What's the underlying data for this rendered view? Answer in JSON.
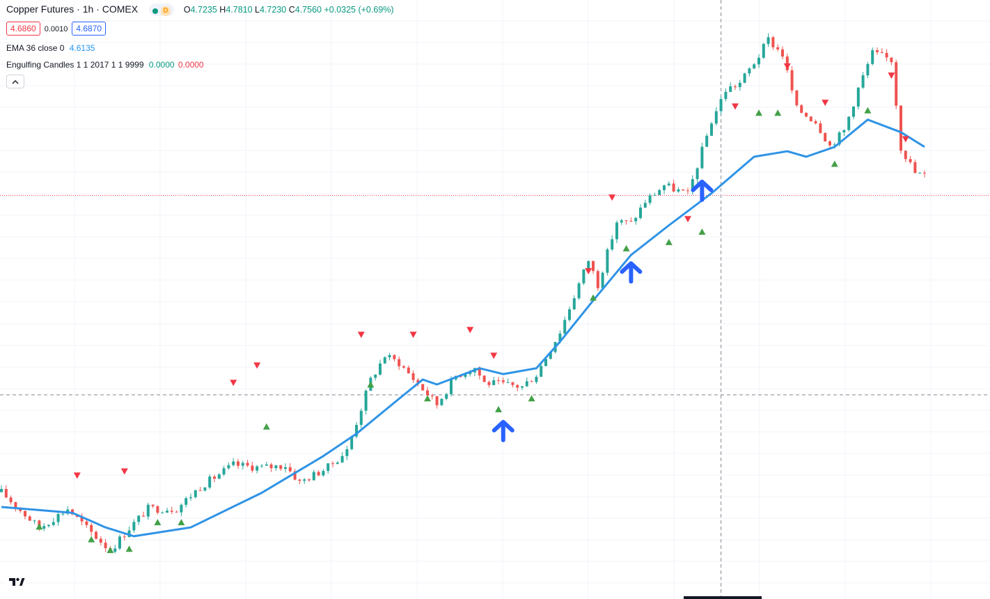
{
  "header": {
    "symbol": "Copper Futures · 1h · COMEX",
    "status_dot_color": "#089981",
    "badge": "D",
    "ohlc": {
      "open_label": "O",
      "open": "4.7235",
      "high_label": "H",
      "high": "4.7810",
      "low_label": "L",
      "low": "4.7230",
      "close_label": "C",
      "close": "4.7560",
      "change": "+0.0325 (+0.69%)"
    },
    "bid": "4.6860",
    "spread": "0.0010",
    "ask": "4.6870"
  },
  "indicators": {
    "ema": {
      "label": "EMA 36 close 0",
      "value": "4.6135",
      "color": "#2196f3"
    },
    "engulfing": {
      "label": "Engulfing Candles 1 1 2017 1 1 9999",
      "value1": "0.0000",
      "value2": "0.0000"
    }
  },
  "icons": {
    "collapse": "chevron-up-icon",
    "logo": "tradingview-logo"
  },
  "colors": {
    "up": "#26a69a",
    "down": "#ef5350",
    "ema": "#2e93e6",
    "arrow": "#2962ff",
    "bull_marker": "#43a047",
    "bear_marker": "#f23645"
  },
  "chart_data": {
    "type": "candlestick",
    "title": "Copper Futures · 1h · COMEX",
    "ylim": [
      4.39,
      4.83
    ],
    "bars": 200,
    "price_line": 4.6865,
    "crosshair": {
      "bar": 152,
      "price": 4.54
    },
    "series": [
      {
        "name": "EMA 36 close 0",
        "points": [
          [
            0,
            4.4576
          ],
          [
            15,
            4.4533
          ],
          [
            22,
            4.4426
          ],
          [
            28,
            4.4361
          ],
          [
            40,
            4.4426
          ],
          [
            55,
            4.468
          ],
          [
            68,
            4.495
          ],
          [
            75,
            4.5114
          ],
          [
            84,
            4.5371
          ],
          [
            89,
            4.5512
          ],
          [
            92,
            4.5476
          ],
          [
            101,
            4.5595
          ],
          [
            106,
            4.5552
          ],
          [
            113,
            4.5595
          ],
          [
            118,
            4.579
          ],
          [
            125,
            4.6093
          ],
          [
            133,
            4.6427
          ],
          [
            141,
            4.6645
          ],
          [
            150,
            4.688
          ],
          [
            159,
            4.7149
          ],
          [
            166,
            4.7189
          ],
          [
            170,
            4.7149
          ],
          [
            176,
            4.7221
          ],
          [
            183,
            4.7421
          ],
          [
            190,
            4.7329
          ],
          [
            195,
            4.7221
          ]
        ]
      }
    ],
    "markers": {
      "bull": [
        [
          8,
          4.443
        ],
        [
          19,
          4.4337
        ],
        [
          23,
          4.4258
        ],
        [
          27,
          4.4267
        ],
        [
          33,
          4.4462
        ],
        [
          38,
          4.4462
        ],
        [
          56,
          4.5165
        ],
        [
          78,
          4.5474
        ],
        [
          90,
          4.5372
        ],
        [
          105,
          4.5292
        ],
        [
          112,
          4.5372
        ],
        [
          125,
          4.6112
        ],
        [
          132,
          4.6474
        ],
        [
          141,
          4.652
        ],
        [
          148,
          4.6596
        ],
        [
          160,
          4.747
        ],
        [
          164,
          4.747
        ],
        [
          176,
          4.7095
        ],
        [
          183,
          4.7488
        ]
      ],
      "bear": [
        [
          16,
          4.4809
        ],
        [
          26,
          4.4839
        ],
        [
          49,
          4.549
        ],
        [
          54,
          4.5617
        ],
        [
          76,
          4.5843
        ],
        [
          87,
          4.5843
        ],
        [
          99,
          4.5878
        ],
        [
          104,
          4.5689
        ],
        [
          124,
          4.631
        ],
        [
          129,
          4.6851
        ],
        [
          145,
          4.6692
        ],
        [
          155,
          4.752
        ],
        [
          166,
          4.7814
        ],
        [
          174,
          4.7547
        ],
        [
          188,
          4.7747
        ],
        [
          191,
          4.7279
        ]
      ]
    },
    "annotations": [
      {
        "type": "arrow-up",
        "bar": 106,
        "price": 4.5139
      },
      {
        "type": "arrow-up",
        "bar": 133,
        "price": 4.6304
      },
      {
        "type": "arrow-up",
        "bar": 148,
        "price": 4.6904
      }
    ],
    "candles_note": "OHLC per bar follows the price path below",
    "path": [
      [
        0,
        4.4685
      ],
      [
        8,
        4.4421
      ],
      [
        14,
        4.4564
      ],
      [
        18,
        4.4421
      ],
      [
        23,
        4.4258
      ],
      [
        27,
        4.4421
      ],
      [
        31,
        4.4564
      ],
      [
        37,
        4.4564
      ],
      [
        42,
        4.4725
      ],
      [
        49,
        4.4885
      ],
      [
        55,
        4.4865
      ],
      [
        60,
        4.4882
      ],
      [
        63,
        4.4757
      ],
      [
        69,
        4.4868
      ],
      [
        73,
        4.499
      ],
      [
        78,
        4.551
      ],
      [
        81,
        4.5687
      ],
      [
        84,
        4.5635
      ],
      [
        88,
        4.548
      ],
      [
        92,
        4.533
      ],
      [
        96,
        4.554
      ],
      [
        100,
        4.56
      ],
      [
        102,
        4.549
      ],
      [
        110,
        4.546
      ],
      [
        113,
        4.555
      ],
      [
        118,
        4.5864
      ],
      [
        124,
        4.639
      ],
      [
        126,
        4.621
      ],
      [
        130,
        4.6672
      ],
      [
        133,
        4.666
      ],
      [
        136,
        4.682
      ],
      [
        140,
        4.694
      ],
      [
        145,
        4.687
      ],
      [
        150,
        4.741
      ],
      [
        153,
        4.764
      ],
      [
        156,
        4.769
      ],
      [
        160,
        4.789
      ],
      [
        162,
        4.801
      ],
      [
        165,
        4.79
      ],
      [
        168,
        4.75
      ],
      [
        172,
        4.741
      ],
      [
        175,
        4.723
      ],
      [
        178,
        4.734
      ],
      [
        181,
        4.765
      ],
      [
        184,
        4.791
      ],
      [
        188,
        4.786
      ],
      [
        190,
        4.722
      ],
      [
        193,
        4.703
      ],
      [
        195,
        4.701
      ]
    ]
  }
}
